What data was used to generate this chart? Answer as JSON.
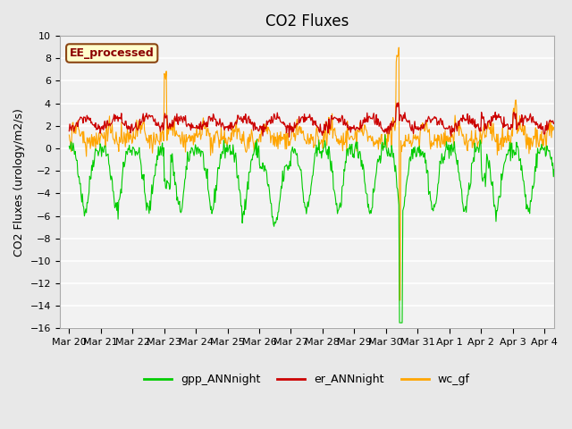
{
  "title": "CO2 Fluxes",
  "ylabel": "CO2 Fluxes (urology/m2/s)",
  "ylim": [
    -16,
    10
  ],
  "yticks": [
    -16,
    -14,
    -12,
    -10,
    -8,
    -6,
    -4,
    -2,
    0,
    2,
    4,
    6,
    8,
    10
  ],
  "xtick_labels": [
    "Mar 20",
    "Mar 21",
    "Mar 22",
    "Mar 23",
    "Mar 24",
    "Mar 25",
    "Mar 26",
    "Mar 27",
    "Mar 28",
    "Mar 29",
    "Mar 30",
    "Mar 31",
    "Apr 1",
    "Apr 2",
    "Apr 3",
    "Apr 4"
  ],
  "annotation_text": "EE_processed",
  "annotation_color": "#8B0000",
  "annotation_bg": "#FFFFCC",
  "annotation_border": "#8B4513",
  "line_colors": {
    "gpp_ANNnight": "#00CC00",
    "er_ANNnight": "#CC0000",
    "wc_gf": "#FFA500"
  },
  "legend_labels": [
    "gpp_ANNnight",
    "er_ANNnight",
    "wc_gf"
  ],
  "background_color": "#E8E8E8",
  "plot_bg": "#F2F2F2",
  "title_fontsize": 12,
  "axis_fontsize": 9,
  "tick_fontsize": 8
}
